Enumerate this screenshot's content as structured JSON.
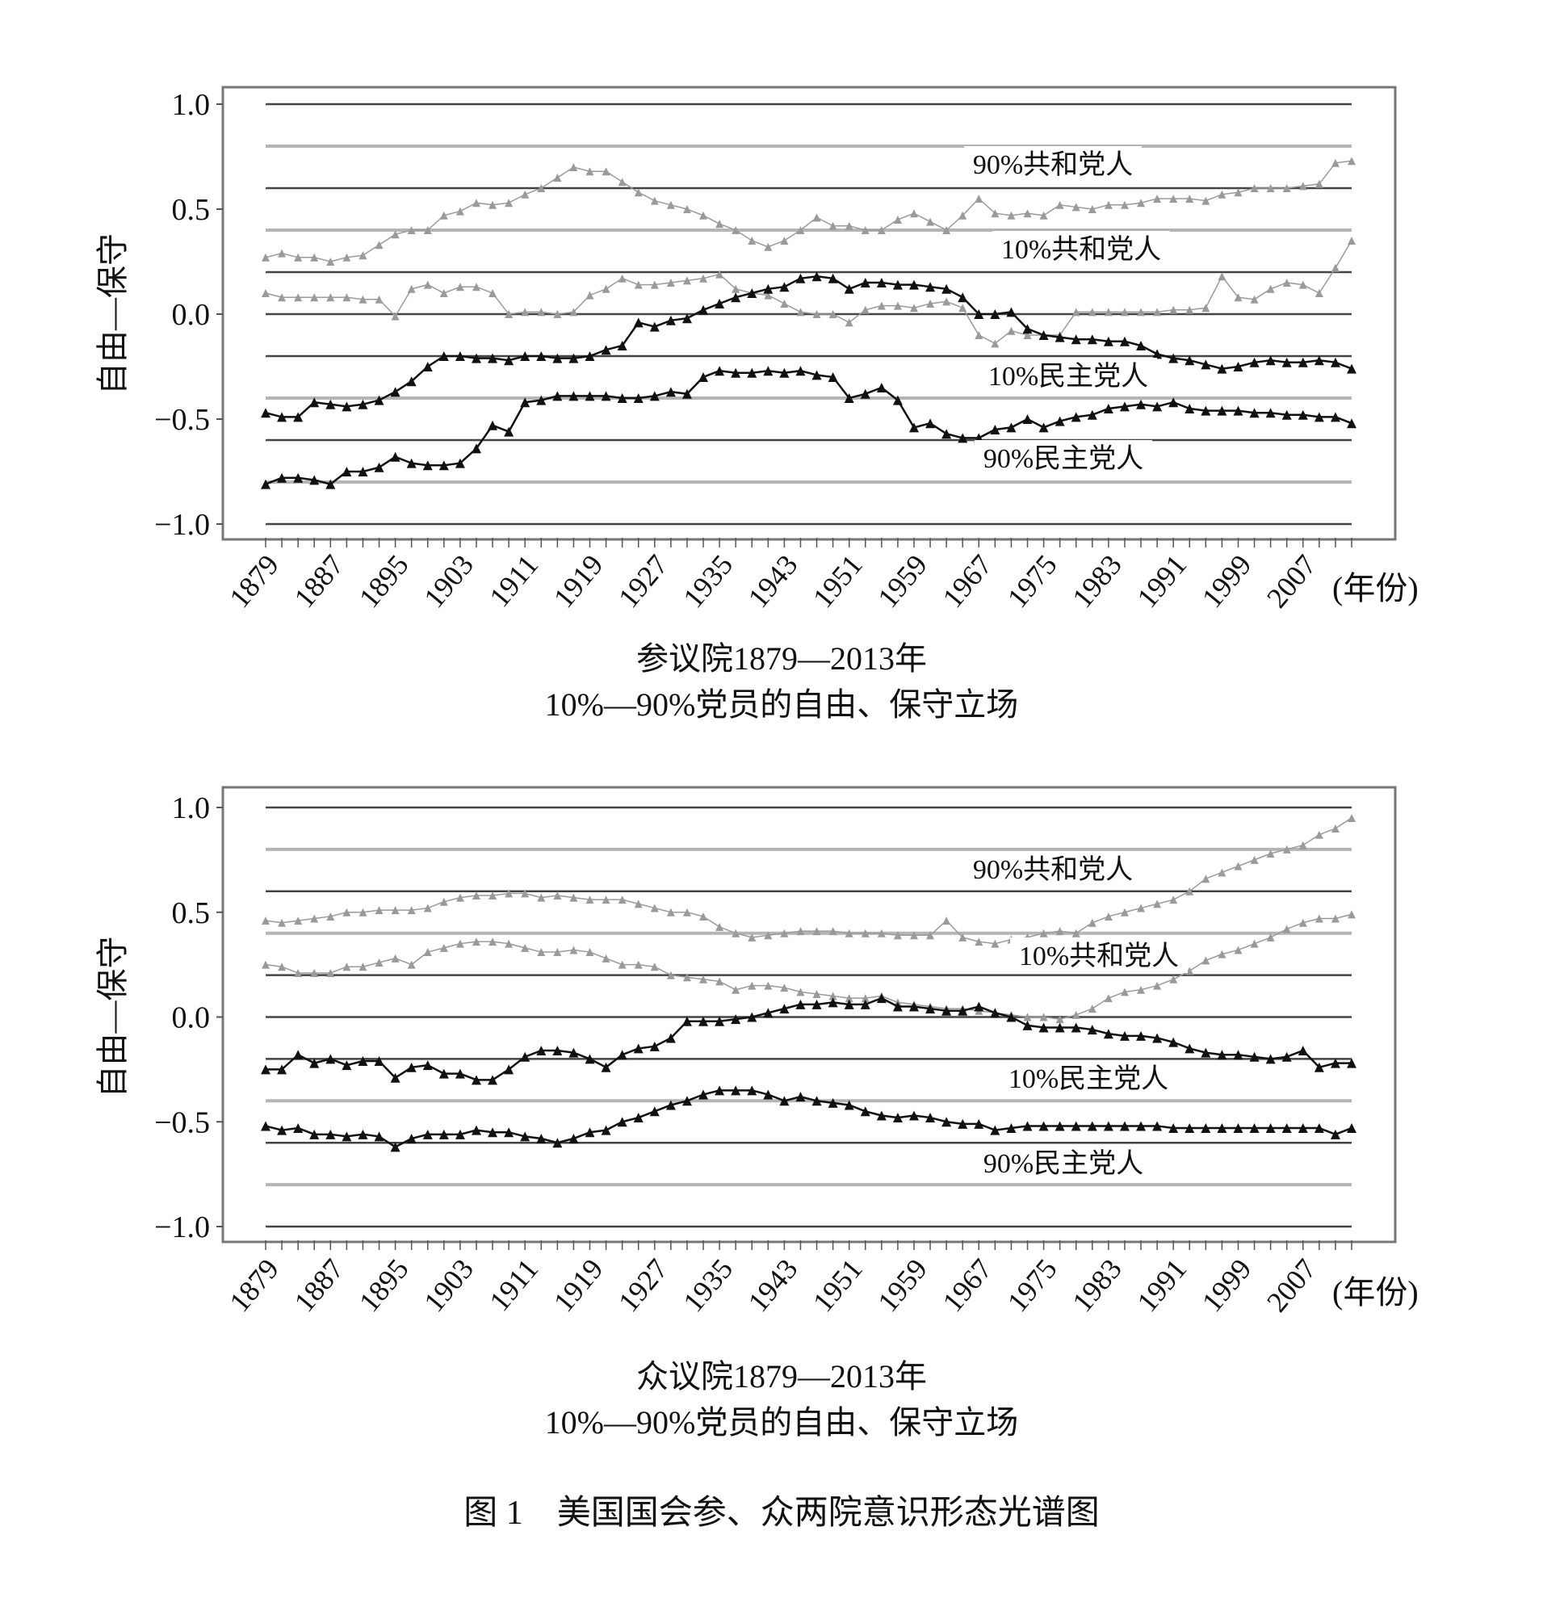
{
  "figure_caption": "图 1　美国国会参、众两院意识形态光谱图",
  "colors": {
    "republican": "#9a9a9a",
    "democrat": "#111111",
    "grid_dark": "#444444",
    "grid_light": "#b5b5b5"
  },
  "chart_data": [
    {
      "type": "line",
      "title_line1": "参议院1879—2013年",
      "title_line2": "10%—90%党员的自由、保守立场",
      "ylabel": "自由—保守",
      "xunit": "(年份)",
      "ylim": [
        -1.0,
        1.0
      ],
      "yticks": [
        "1.0",
        "0.5",
        "0.0",
        "−0.5",
        "−1.0"
      ],
      "xticks": [
        "1879",
        "1887",
        "1895",
        "1903",
        "1911",
        "1919",
        "1927",
        "1935",
        "1943",
        "1951",
        "1959",
        "1967",
        "1975",
        "1983",
        "1991",
        "1999",
        "2007"
      ],
      "x_start": 1879,
      "x_end": 2013,
      "x_step": 2,
      "grid": true,
      "series": [
        {
          "name": "90%共和党人",
          "party": "republican",
          "values": [
            0.27,
            0.29,
            0.27,
            0.27,
            0.25,
            0.27,
            0.28,
            0.33,
            0.38,
            0.4,
            0.4,
            0.47,
            0.49,
            0.53,
            0.52,
            0.53,
            0.57,
            0.6,
            0.65,
            0.7,
            0.68,
            0.68,
            0.63,
            0.58,
            0.54,
            0.52,
            0.5,
            0.47,
            0.43,
            0.4,
            0.35,
            0.32,
            0.35,
            0.4,
            0.46,
            0.42,
            0.42,
            0.4,
            0.4,
            0.45,
            0.48,
            0.44,
            0.4,
            0.47,
            0.55,
            0.48,
            0.47,
            0.48,
            0.47,
            0.52,
            0.51,
            0.5,
            0.52,
            0.52,
            0.53,
            0.55,
            0.55,
            0.55,
            0.54,
            0.57,
            0.58,
            0.6,
            0.6,
            0.6,
            0.61,
            0.62,
            0.72,
            0.73
          ]
        },
        {
          "name": "10%共和党人",
          "party": "republican",
          "values": [
            0.1,
            0.08,
            0.08,
            0.08,
            0.08,
            0.08,
            0.07,
            0.07,
            -0.01,
            0.12,
            0.14,
            0.1,
            0.13,
            0.13,
            0.1,
            0.0,
            0.01,
            0.01,
            0.0,
            0.01,
            0.09,
            0.12,
            0.17,
            0.14,
            0.14,
            0.15,
            0.16,
            0.17,
            0.19,
            0.12,
            0.1,
            0.09,
            0.05,
            0.01,
            0.0,
            0.0,
            -0.04,
            0.02,
            0.04,
            0.04,
            0.03,
            0.05,
            0.06,
            0.03,
            -0.1,
            -0.14,
            -0.08,
            -0.1,
            -0.1,
            -0.1,
            0.01,
            0.01,
            0.01,
            0.01,
            0.01,
            0.01,
            0.02,
            0.02,
            0.03,
            0.18,
            0.08,
            0.07,
            0.12,
            0.15,
            0.14,
            0.1,
            0.22,
            0.35
          ]
        },
        {
          "name": "10%民主党人",
          "party": "democrat",
          "values": [
            -0.47,
            -0.49,
            -0.49,
            -0.42,
            -0.43,
            -0.44,
            -0.43,
            -0.41,
            -0.37,
            -0.32,
            -0.25,
            -0.2,
            -0.2,
            -0.21,
            -0.21,
            -0.22,
            -0.2,
            -0.2,
            -0.21,
            -0.21,
            -0.2,
            -0.17,
            -0.15,
            -0.04,
            -0.06,
            -0.03,
            -0.02,
            0.02,
            0.05,
            0.08,
            0.1,
            0.12,
            0.13,
            0.17,
            0.18,
            0.17,
            0.12,
            0.15,
            0.15,
            0.14,
            0.14,
            0.13,
            0.12,
            0.08,
            0.0,
            0.0,
            0.01,
            -0.07,
            -0.1,
            -0.11,
            -0.12,
            -0.12,
            -0.13,
            -0.13,
            -0.15,
            -0.19,
            -0.21,
            -0.22,
            -0.24,
            -0.26,
            -0.25,
            -0.23,
            -0.22,
            -0.23,
            -0.23,
            -0.22,
            -0.23,
            -0.26
          ]
        },
        {
          "name": "90%民主党人",
          "party": "democrat",
          "values": [
            -0.81,
            -0.78,
            -0.78,
            -0.79,
            -0.81,
            -0.75,
            -0.75,
            -0.73,
            -0.68,
            -0.71,
            -0.72,
            -0.72,
            -0.71,
            -0.64,
            -0.53,
            -0.56,
            -0.42,
            -0.41,
            -0.39,
            -0.39,
            -0.39,
            -0.39,
            -0.4,
            -0.4,
            -0.39,
            -0.37,
            -0.38,
            -0.3,
            -0.27,
            -0.28,
            -0.28,
            -0.27,
            -0.28,
            -0.27,
            -0.29,
            -0.3,
            -0.4,
            -0.38,
            -0.35,
            -0.41,
            -0.54,
            -0.52,
            -0.57,
            -0.59,
            -0.59,
            -0.55,
            -0.54,
            -0.5,
            -0.54,
            -0.51,
            -0.49,
            -0.48,
            -0.45,
            -0.44,
            -0.43,
            -0.44,
            -0.42,
            -0.45,
            -0.46,
            -0.46,
            -0.46,
            -0.47,
            -0.47,
            -0.48,
            -0.48,
            -0.49,
            -0.49,
            -0.52
          ]
        }
      ]
    },
    {
      "type": "line",
      "title_line1": "众议院1879—2013年",
      "title_line2": "10%—90%党员的自由、保守立场",
      "ylabel": "自由—保守",
      "xunit": "(年份)",
      "ylim": [
        -1.0,
        1.0
      ],
      "yticks": [
        "1.0",
        "0.5",
        "0.0",
        "−0.5",
        "−1.0"
      ],
      "xticks": [
        "1879",
        "1887",
        "1895",
        "1903",
        "1911",
        "1919",
        "1927",
        "1935",
        "1943",
        "1951",
        "1959",
        "1967",
        "1975",
        "1983",
        "1991",
        "1999",
        "2007"
      ],
      "x_start": 1879,
      "x_end": 2013,
      "x_step": 2,
      "grid": true,
      "series": [
        {
          "name": "90%共和党人",
          "party": "republican",
          "values": [
            0.46,
            0.45,
            0.46,
            0.47,
            0.48,
            0.5,
            0.5,
            0.51,
            0.51,
            0.51,
            0.52,
            0.55,
            0.57,
            0.58,
            0.58,
            0.59,
            0.59,
            0.57,
            0.58,
            0.57,
            0.56,
            0.56,
            0.56,
            0.54,
            0.52,
            0.5,
            0.5,
            0.48,
            0.43,
            0.4,
            0.38,
            0.39,
            0.4,
            0.41,
            0.41,
            0.41,
            0.4,
            0.4,
            0.4,
            0.39,
            0.39,
            0.39,
            0.46,
            0.38,
            0.36,
            0.35,
            0.37,
            0.38,
            0.4,
            0.41,
            0.4,
            0.45,
            0.48,
            0.5,
            0.52,
            0.54,
            0.56,
            0.6,
            0.66,
            0.69,
            0.72,
            0.75,
            0.78,
            0.8,
            0.82,
            0.87,
            0.9,
            0.95
          ]
        },
        {
          "name": "10%共和党人",
          "party": "republican",
          "values": [
            0.25,
            0.24,
            0.21,
            0.21,
            0.21,
            0.24,
            0.24,
            0.26,
            0.28,
            0.25,
            0.31,
            0.33,
            0.35,
            0.36,
            0.36,
            0.35,
            0.33,
            0.31,
            0.31,
            0.32,
            0.31,
            0.28,
            0.25,
            0.25,
            0.24,
            0.2,
            0.19,
            0.18,
            0.17,
            0.13,
            0.15,
            0.15,
            0.14,
            0.12,
            0.11,
            0.1,
            0.09,
            0.09,
            0.1,
            0.07,
            0.06,
            0.05,
            0.04,
            0.04,
            0.03,
            0.02,
            0.01,
            0.0,
            0.0,
            -0.01,
            0.01,
            0.04,
            0.09,
            0.12,
            0.13,
            0.15,
            0.18,
            0.22,
            0.27,
            0.3,
            0.32,
            0.35,
            0.38,
            0.42,
            0.45,
            0.47,
            0.47,
            0.49
          ]
        },
        {
          "name": "10%民主党人",
          "party": "democrat",
          "values": [
            -0.25,
            -0.25,
            -0.18,
            -0.22,
            -0.2,
            -0.23,
            -0.21,
            -0.21,
            -0.29,
            -0.24,
            -0.23,
            -0.27,
            -0.27,
            -0.3,
            -0.3,
            -0.25,
            -0.19,
            -0.16,
            -0.16,
            -0.17,
            -0.2,
            -0.24,
            -0.18,
            -0.15,
            -0.14,
            -0.1,
            -0.02,
            -0.02,
            -0.02,
            -0.01,
            0.0,
            0.02,
            0.04,
            0.06,
            0.06,
            0.07,
            0.06,
            0.06,
            0.09,
            0.05,
            0.05,
            0.04,
            0.03,
            0.03,
            0.05,
            0.02,
            0.0,
            -0.04,
            -0.05,
            -0.05,
            -0.05,
            -0.06,
            -0.08,
            -0.09,
            -0.09,
            -0.1,
            -0.12,
            -0.15,
            -0.17,
            -0.18,
            -0.18,
            -0.19,
            -0.2,
            -0.19,
            -0.16,
            -0.24,
            -0.22,
            -0.22
          ]
        },
        {
          "name": "90%民主党人",
          "party": "democrat",
          "values": [
            -0.52,
            -0.54,
            -0.53,
            -0.56,
            -0.56,
            -0.57,
            -0.56,
            -0.57,
            -0.62,
            -0.58,
            -0.56,
            -0.56,
            -0.56,
            -0.54,
            -0.55,
            -0.55,
            -0.57,
            -0.58,
            -0.6,
            -0.58,
            -0.55,
            -0.54,
            -0.5,
            -0.48,
            -0.45,
            -0.42,
            -0.4,
            -0.37,
            -0.35,
            -0.35,
            -0.35,
            -0.37,
            -0.4,
            -0.38,
            -0.4,
            -0.41,
            -0.42,
            -0.45,
            -0.47,
            -0.48,
            -0.47,
            -0.48,
            -0.5,
            -0.51,
            -0.51,
            -0.54,
            -0.53,
            -0.52,
            -0.52,
            -0.52,
            -0.52,
            -0.52,
            -0.52,
            -0.52,
            -0.52,
            -0.52,
            -0.53,
            -0.53,
            -0.53,
            -0.53,
            -0.53,
            -0.53,
            -0.53,
            -0.53,
            -0.53,
            -0.53,
            -0.56,
            -0.53
          ]
        }
      ]
    }
  ]
}
